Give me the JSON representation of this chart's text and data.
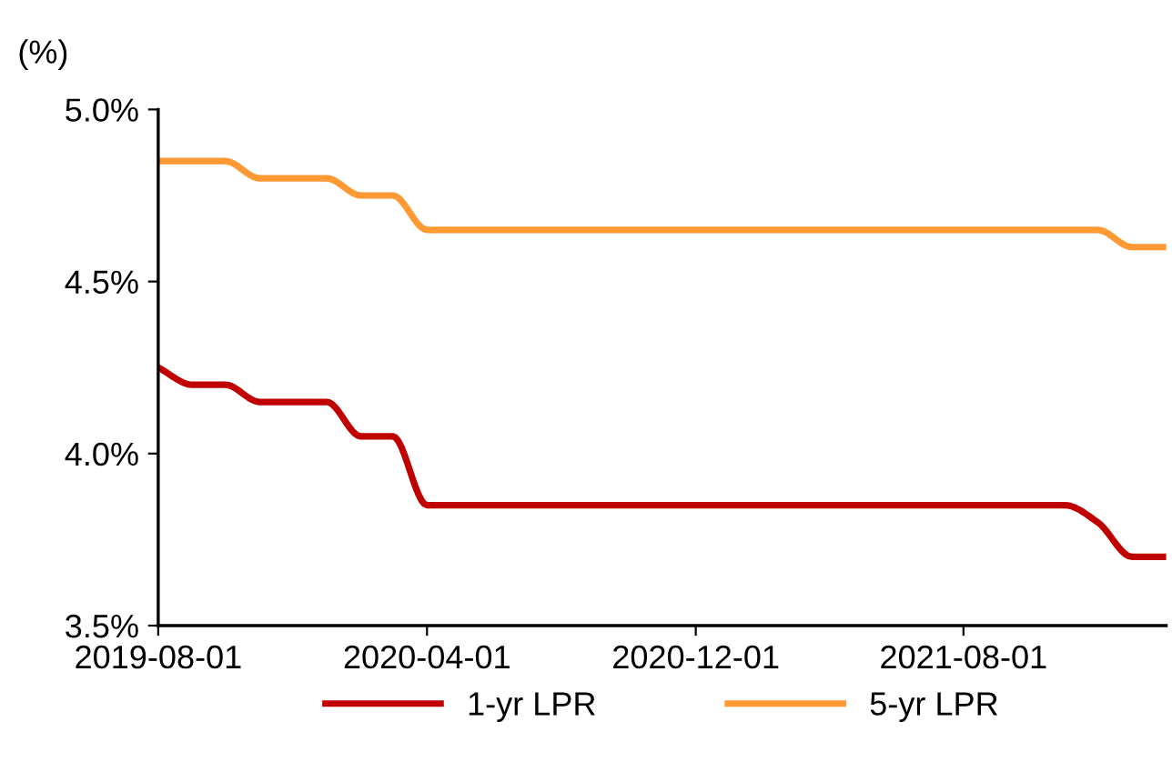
{
  "chart_data": {
    "type": "line",
    "ylabel": "(%)",
    "x": [
      "2019-08-01",
      "2019-09-01",
      "2019-10-01",
      "2019-11-01",
      "2019-12-01",
      "2020-01-01",
      "2020-02-01",
      "2020-03-01",
      "2020-04-01",
      "2020-05-01",
      "2020-06-01",
      "2020-07-01",
      "2020-08-01",
      "2020-09-01",
      "2020-10-01",
      "2020-11-01",
      "2020-12-01",
      "2021-01-01",
      "2021-02-01",
      "2021-03-01",
      "2021-04-01",
      "2021-05-01",
      "2021-06-01",
      "2021-07-01",
      "2021-08-01",
      "2021-09-01",
      "2021-10-01",
      "2021-11-01",
      "2021-12-01",
      "2022-01-01",
      "2022-02-01"
    ],
    "series": [
      {
        "name": "1-yr LPR",
        "color": "#c00000",
        "values": [
          4.25,
          4.2,
          4.2,
          4.15,
          4.15,
          4.15,
          4.05,
          4.05,
          3.85,
          3.85,
          3.85,
          3.85,
          3.85,
          3.85,
          3.85,
          3.85,
          3.85,
          3.85,
          3.85,
          3.85,
          3.85,
          3.85,
          3.85,
          3.85,
          3.85,
          3.85,
          3.85,
          3.85,
          3.8,
          3.7,
          3.7
        ]
      },
      {
        "name": "5-yr LPR",
        "color": "#ff9933",
        "values": [
          4.85,
          4.85,
          4.85,
          4.8,
          4.8,
          4.8,
          4.75,
          4.75,
          4.65,
          4.65,
          4.65,
          4.65,
          4.65,
          4.65,
          4.65,
          4.65,
          4.65,
          4.65,
          4.65,
          4.65,
          4.65,
          4.65,
          4.65,
          4.65,
          4.65,
          4.65,
          4.65,
          4.65,
          4.65,
          4.6,
          4.6
        ]
      }
    ],
    "xlim": [
      "2019-08-01",
      "2022-02-01"
    ],
    "xticks": [
      "2019-08-01",
      "2020-04-01",
      "2020-12-01",
      "2021-08-01"
    ],
    "ylim": [
      3.5,
      5.0
    ],
    "yticks": [
      {
        "value": 3.5,
        "label": "3.5%"
      },
      {
        "value": 4.0,
        "label": "4.0%"
      },
      {
        "value": 4.5,
        "label": "4.5%"
      },
      {
        "value": 5.0,
        "label": "5.0%"
      }
    ],
    "grid": false,
    "legend": "bottom",
    "marker": "none",
    "line_style": "solid"
  }
}
